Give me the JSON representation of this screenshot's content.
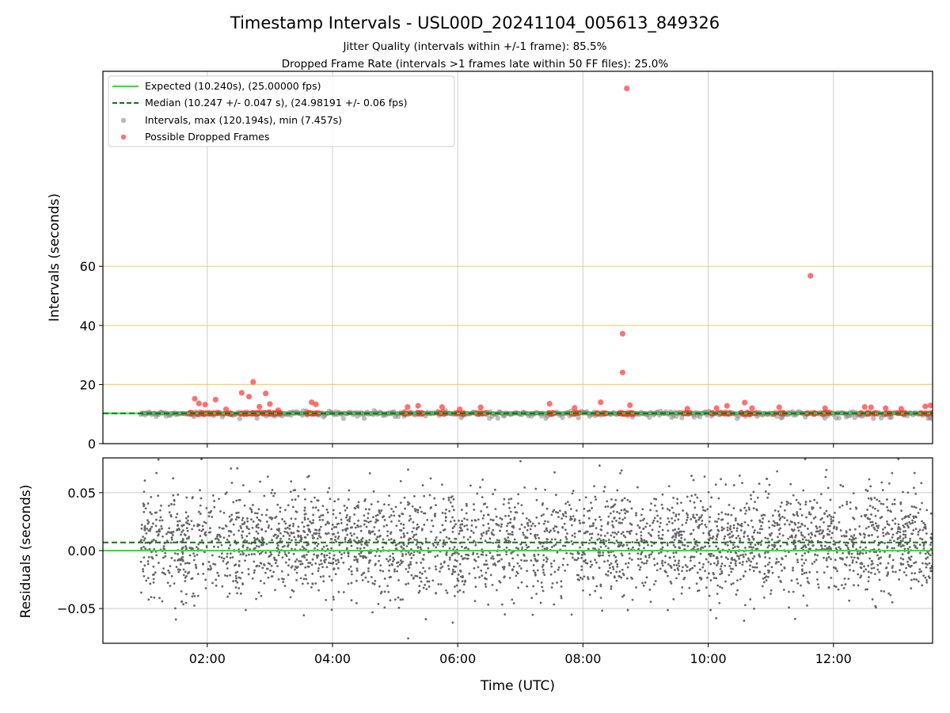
{
  "figure": {
    "title": "Timestamp Intervals - USL00D_20241104_005613_849326",
    "subtitle1": "Jitter Quality (intervals within +/-1 frame): 85.5%",
    "subtitle2": "Dropped Frame Rate (intervals >1 frames late within 50 FF files): 25.0%"
  },
  "chart_data": [
    {
      "type": "scatter",
      "panel": "intervals",
      "ylabel": "Intervals (seconds)",
      "xlabel": "",
      "xlim": [
        "00:20",
        "13:35"
      ],
      "ylim": [
        0,
        126
      ],
      "yticks": [
        0,
        20,
        40,
        60
      ],
      "xticks": [
        "02:00",
        "04:00",
        "06:00",
        "08:00",
        "10:00",
        "12:00"
      ],
      "grid": true,
      "legend_position": "top-left",
      "reference_lines": [
        {
          "name": "Expected (10.240s), (25.00000 fps)",
          "y": 10.24,
          "style": "solid",
          "color": "#22ee22"
        },
        {
          "name": "Median (10.247 +/- 0.047 s), (24.98191 +/- 0.06 fps)",
          "y": 10.247,
          "style": "dashed",
          "color": "#117711"
        }
      ],
      "threshold_lines": {
        "color": "#ffcc66",
        "values": [
          20,
          40,
          60
        ]
      },
      "series": [
        {
          "name": "Intervals, max (120.194s), min (7.457s)",
          "color": "#888888",
          "x_range": [
            "00:56",
            "13:35"
          ],
          "typical": 10.24,
          "min": 7.457,
          "max": 120.194
        },
        {
          "name": "Possible Dropped Frames",
          "color": "#ff3333",
          "points": [
            {
              "x": "01:48",
              "y": 15.2
            },
            {
              "x": "01:52",
              "y": 13.6
            },
            {
              "x": "01:58",
              "y": 13.2
            },
            {
              "x": "02:08",
              "y": 14.9
            },
            {
              "x": "02:18",
              "y": 11.6
            },
            {
              "x": "02:33",
              "y": 17.2
            },
            {
              "x": "02:40",
              "y": 15.9
            },
            {
              "x": "02:44",
              "y": 20.9
            },
            {
              "x": "02:50",
              "y": 12.5
            },
            {
              "x": "02:56",
              "y": 17.0
            },
            {
              "x": "03:00",
              "y": 13.4
            },
            {
              "x": "03:08",
              "y": 11.3
            },
            {
              "x": "03:40",
              "y": 14.0
            },
            {
              "x": "03:44",
              "y": 13.3
            },
            {
              "x": "05:12",
              "y": 12.4
            },
            {
              "x": "05:22",
              "y": 12.8
            },
            {
              "x": "05:45",
              "y": 12.4
            },
            {
              "x": "06:02",
              "y": 11.6
            },
            {
              "x": "06:22",
              "y": 12.3
            },
            {
              "x": "07:28",
              "y": 13.5
            },
            {
              "x": "07:52",
              "y": 12.1
            },
            {
              "x": "08:17",
              "y": 14.0
            },
            {
              "x": "08:38",
              "y": 37.2
            },
            {
              "x": "08:38",
              "y": 24.1
            },
            {
              "x": "08:42",
              "y": 120.194
            },
            {
              "x": "08:45",
              "y": 13.0
            },
            {
              "x": "09:40",
              "y": 11.8
            },
            {
              "x": "10:08",
              "y": 12.0
            },
            {
              "x": "10:18",
              "y": 12.8
            },
            {
              "x": "10:35",
              "y": 13.9
            },
            {
              "x": "10:42",
              "y": 12.0
            },
            {
              "x": "11:08",
              "y": 12.3
            },
            {
              "x": "11:38",
              "y": 56.8
            },
            {
              "x": "11:52",
              "y": 12.0
            },
            {
              "x": "12:30",
              "y": 12.4
            },
            {
              "x": "12:36",
              "y": 12.3
            },
            {
              "x": "12:50",
              "y": 12.0
            },
            {
              "x": "13:05",
              "y": 11.8
            },
            {
              "x": "13:28",
              "y": 12.6
            },
            {
              "x": "13:33",
              "y": 12.9
            }
          ]
        }
      ]
    },
    {
      "type": "scatter",
      "panel": "residuals",
      "ylabel": "Residuals (seconds)",
      "xlabel": "Time (UTC)",
      "xlim": [
        "00:20",
        "13:35"
      ],
      "ylim": [
        -0.08,
        0.08
      ],
      "yticks": [
        0.05,
        0.0,
        -0.05
      ],
      "ytick_labels": [
        "0.05",
        "0.00",
        "−0.05"
      ],
      "xticks": [
        "02:00",
        "04:00",
        "06:00",
        "08:00",
        "10:00",
        "12:00"
      ],
      "grid": true,
      "reference_lines": [
        {
          "y": 0.007,
          "style": "dashed",
          "color": "#117711"
        },
        {
          "y": 0.0,
          "style": "solid",
          "color": "#22ee22"
        }
      ],
      "series": [
        {
          "name": "",
          "color": "#666666",
          "x_range": [
            "00:56",
            "13:35"
          ],
          "mean": 0.007,
          "spread": 0.022
        }
      ]
    }
  ]
}
